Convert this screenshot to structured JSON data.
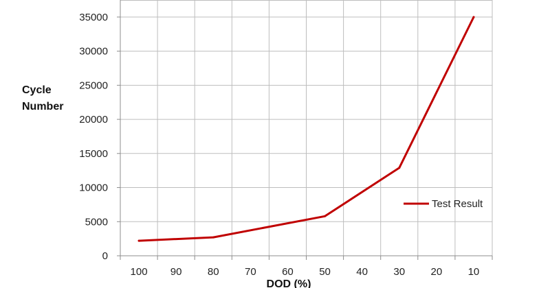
{
  "chart_data": {
    "type": "line",
    "x_categories": [
      "100",
      "90",
      "80",
      "70",
      "60",
      "50",
      "40",
      "30",
      "20",
      "10"
    ],
    "series": [
      {
        "name": "Test Result",
        "color": "#c00000",
        "points": [
          {
            "x": "100",
            "y": 2200
          },
          {
            "x": "80",
            "y": 2700
          },
          {
            "x": "50",
            "y": 5800
          },
          {
            "x": "30",
            "y": 12900
          },
          {
            "x": "10",
            "y": 35000
          }
        ]
      }
    ],
    "ylabel_lines": [
      "Cycle",
      "Number"
    ],
    "xlabel": "DOD (%)",
    "ylim": [
      0,
      35000
    ],
    "y_ticks": [
      0,
      5000,
      10000,
      15000,
      20000,
      25000,
      30000,
      35000
    ],
    "grid": true,
    "legend_position": "right"
  }
}
